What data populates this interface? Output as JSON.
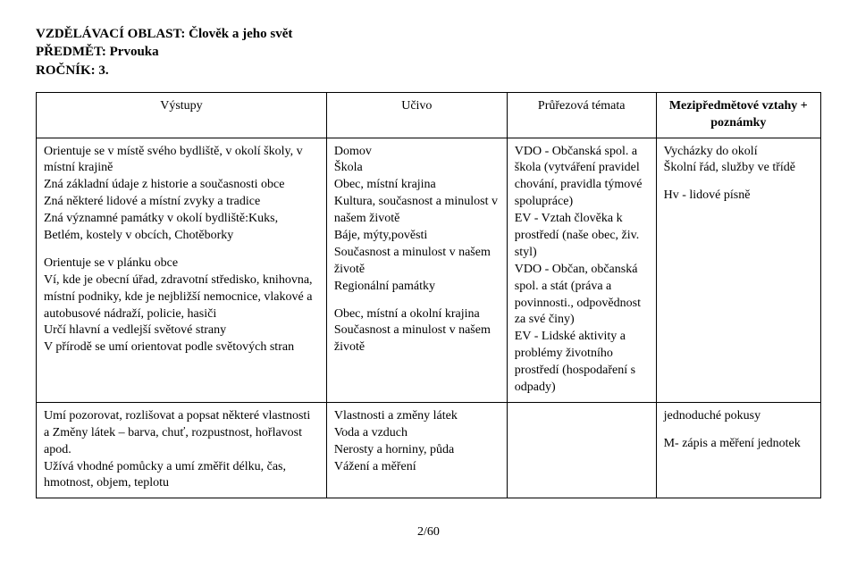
{
  "header": {
    "line1": "VZDĚLÁVACÍ OBLAST: Člověk a jeho svět",
    "line2": "PŘEDMĚT: Prvouka",
    "line3": "ROČNÍK: 3."
  },
  "table": {
    "headers": {
      "vystupy": "Výstupy",
      "ucivo": "Učivo",
      "prurezova": "Průřezová témata",
      "mezi": "Mezipředmětové vztahy + poznámky"
    },
    "row1": {
      "vystupy_block1": "Orientuje se v místě svého bydliště, v okolí školy, v místní krajině\nZná základní údaje z historie a současnosti obce\nZná některé lidové a místní zvyky a tradice\nZná významné památky v okolí bydliště:Kuks, Betlém, kostely v obcích, Chotěborky",
      "vystupy_block2": "Orientuje se v plánku obce\nVí, kde je obecní úřad, zdravotní středisko, knihovna, místní podniky, kde je nejbližší nemocnice, vlakové a autobusové nádraží, policie, hasiči\nUrčí hlavní a vedlejší světové strany\nV přírodě se umí orientovat podle světových stran",
      "ucivo_block1": "Domov\nŠkola\nObec, místní krajina\nKultura, současnost a minulost v našem životě\nBáje, mýty,pověsti\nSoučasnost a minulost v našem životě\nRegionální památky",
      "ucivo_block2": "Obec, místní a okolní krajina\nSoučasnost a minulost v našem životě",
      "prurezova": "VDO - Občanská spol. a škola (vytváření pravidel chování, pravidla týmové spolupráce)\nEV - Vztah člověka k prostředí (naše obec, živ. styl)\nVDO - Občan, občanská spol. a stát (práva a povinnosti., odpovědnost za své činy)\nEV - Lidské aktivity a problémy životního prostředí (hospodaření s odpady)",
      "mezi_block1": "Vycházky do okolí\nŠkolní řád, služby ve třídě",
      "mezi_block2": "Hv - lidové písně"
    },
    "row2": {
      "vystupy": "Umí pozorovat, rozlišovat a popsat některé vlastnosti a Změny látek – barva, chuť, rozpustnost, hořlavost apod.\nUžívá vhodné pomůcky a umí změřit délku, čas, hmotnost, objem, teplotu",
      "ucivo": "Vlastnosti a změny látek\nVoda a vzduch\nNerosty a horniny, půda\nVážení a měření",
      "prurezova": "",
      "mezi_block1": "jednoduché pokusy",
      "mezi_block2": "M- zápis a měření jednotek"
    }
  },
  "footer": {
    "page": "2/60"
  }
}
